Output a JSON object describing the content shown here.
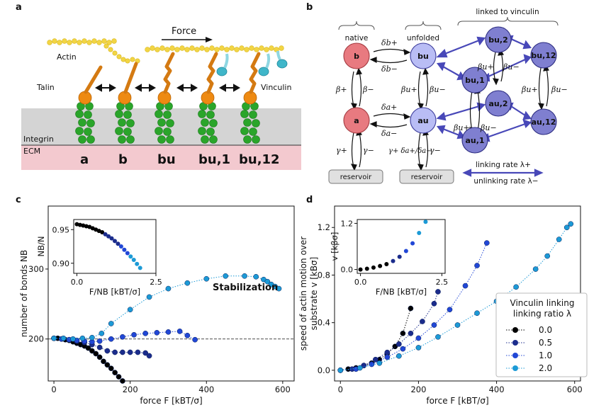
{
  "panels": [
    "a",
    "b",
    "c",
    "d"
  ],
  "panel_a": {
    "force_label": "Force",
    "labels": {
      "actin": "Actin",
      "talin": "Talin",
      "vinculin": "Vinculin",
      "integrin": "Integrin",
      "ecm": "ECM"
    },
    "states": [
      "a",
      "b",
      "bu",
      "bu,1",
      "bu,12"
    ]
  },
  "panel_b": {
    "groups": {
      "native": "native",
      "unfolded": "unfolded",
      "linked": "linked to vinculin"
    },
    "nodes": {
      "b": "b",
      "bu": "bu",
      "bu2": "bu,2",
      "bu12": "bu,12",
      "bu1": "bu,1",
      "a": "a",
      "au": "au",
      "au2": "au,2",
      "au12": "au,12",
      "au1": "au,1"
    },
    "rates": {
      "db_plus": "δb+",
      "db_minus": "δb−",
      "da_plus": "δa+",
      "da_minus": "δa−",
      "beta_plus": "β+",
      "beta_minus": "β−",
      "betau_plus": "βu+",
      "betau_minus": "βu−",
      "gamma_plus": "γ+",
      "gamma_minus": "γ−",
      "gamma_ratio": "γ+ δa+/δa−"
    },
    "reservoir": "reservoir",
    "legend": {
      "linking": "linking rate λ+",
      "unlinking": "unlinking rate λ−"
    },
    "colors": {
      "native": "#e87a80",
      "unfolded": "#b9bdf5",
      "linked": "#7f7fd0",
      "arrow": "#4848b8"
    }
  },
  "chart_data": [
    {
      "type": "scatter",
      "panel": "c",
      "xlabel": "force F [kBT/σ]",
      "ylabel": "number of bonds NB",
      "xlim": [
        -15,
        630
      ],
      "ylim": [
        140,
        390
      ],
      "xticks": [
        0,
        200,
        400,
        600
      ],
      "yticks": [
        200,
        300
      ],
      "reference_line": 200,
      "annotation": "Stabilization",
      "series": [
        {
          "lambda": "0.0",
          "color": "#000000",
          "x": [
            0,
            10,
            20,
            30,
            40,
            50,
            60,
            70,
            80,
            90,
            100,
            110,
            120,
            130,
            140,
            150,
            160,
            170,
            180
          ],
          "y": [
            201,
            201,
            200,
            199,
            198,
            196,
            194,
            192,
            190,
            187,
            183,
            179,
            174,
            168,
            163,
            158,
            152,
            146,
            140
          ]
        },
        {
          "lambda": "0.5",
          "color": "#1b2c8c",
          "x": [
            0,
            20,
            40,
            60,
            80,
            100,
            120,
            140,
            160,
            180,
            200,
            220,
            240,
            250
          ],
          "y": [
            201,
            200,
            199,
            197,
            195,
            192,
            188,
            183,
            181,
            181,
            181,
            181,
            180,
            176
          ]
        },
        {
          "lambda": "1.0",
          "color": "#2147d6",
          "x": [
            0,
            20,
            40,
            60,
            80,
            100,
            120,
            150,
            180,
            210,
            240,
            270,
            300,
            330,
            350,
            370
          ],
          "y": [
            201,
            200,
            199,
            198,
            197,
            196,
            197,
            200,
            203,
            206,
            208,
            209,
            210,
            211,
            205,
            199
          ]
        },
        {
          "lambda": "2.0",
          "color": "#1c9ad6",
          "x": [
            0,
            25,
            50,
            75,
            100,
            125,
            150,
            200,
            250,
            300,
            350,
            400,
            450,
            500,
            530,
            550,
            560,
            570,
            580,
            590
          ],
          "y": [
            201,
            201,
            200,
            201,
            202,
            208,
            222,
            242,
            260,
            272,
            280,
            286,
            290,
            290,
            289,
            285,
            282,
            278,
            275,
            272
          ]
        }
      ],
      "inset": {
        "xlabel": "F/NB [kBT/σ]",
        "ylabel": "NB/N",
        "xlim": [
          -0.1,
          2.5
        ],
        "ylim": [
          0.885,
          0.965
        ],
        "xticks": [
          0.0,
          2.5
        ],
        "yticks": [
          0.9,
          0.95
        ],
        "x": [
          0.0,
          0.1,
          0.2,
          0.3,
          0.4,
          0.5,
          0.6,
          0.7,
          0.8,
          0.9,
          1.0,
          1.1,
          1.2,
          1.3,
          1.4,
          1.5,
          1.6,
          1.7,
          1.8,
          1.9,
          2.0
        ],
        "y": [
          0.958,
          0.957,
          0.956,
          0.955,
          0.954,
          0.952,
          0.95,
          0.948,
          0.946,
          0.943,
          0.94,
          0.937,
          0.933,
          0.929,
          0.925,
          0.92,
          0.915,
          0.91,
          0.905,
          0.899,
          0.893
        ]
      }
    },
    {
      "type": "scatter",
      "panel": "d",
      "xlabel": "force F [kBT/σ]",
      "ylabel": "speed of actin motion over substrate v [kBσ]",
      "xlim": [
        -15,
        615
      ],
      "ylim": [
        -0.09,
        1.38
      ],
      "xticks": [
        0,
        200,
        400,
        600
      ],
      "yticks": [
        0.0,
        0.4,
        0.8,
        1.2
      ],
      "legend_title": "Vinculin linking ratio λ",
      "series": [
        {
          "name": "0.0",
          "color": "#000000",
          "x": [
            0,
            20,
            40,
            60,
            80,
            100,
            120,
            140,
            160,
            180
          ],
          "y": [
            0,
            0.01,
            0.02,
            0.04,
            0.06,
            0.09,
            0.14,
            0.2,
            0.31,
            0.52
          ]
        },
        {
          "name": "0.5",
          "color": "#1b2c8c",
          "x": [
            0,
            30,
            60,
            90,
            120,
            150,
            180,
            210,
            240,
            250
          ],
          "y": [
            0,
            0.01,
            0.04,
            0.09,
            0.15,
            0.22,
            0.31,
            0.41,
            0.56,
            0.66
          ]
        },
        {
          "name": "1.0",
          "color": "#2147d6",
          "x": [
            0,
            40,
            80,
            120,
            160,
            200,
            240,
            280,
            320,
            350,
            375
          ],
          "y": [
            0,
            0.01,
            0.05,
            0.11,
            0.18,
            0.27,
            0.38,
            0.51,
            0.71,
            0.88,
            1.07
          ]
        },
        {
          "name": "2.0",
          "color": "#1c9ad6",
          "x": [
            0,
            50,
            100,
            150,
            200,
            250,
            300,
            350,
            400,
            450,
            500,
            530,
            560,
            580,
            590
          ],
          "y": [
            0,
            0.02,
            0.06,
            0.12,
            0.19,
            0.28,
            0.38,
            0.48,
            0.58,
            0.7,
            0.85,
            0.96,
            1.1,
            1.2,
            1.23
          ]
        }
      ],
      "inset": {
        "xlabel": "F/NB [kBT/σ]",
        "ylabel": "v [kβσ]",
        "xlim": [
          -0.1,
          2.6
        ],
        "ylim": [
          -0.1,
          1.3
        ],
        "xticks": [
          0.0,
          2.5
        ],
        "yticks": [
          0.0,
          1.2
        ],
        "x": [
          0.0,
          0.2,
          0.4,
          0.6,
          0.8,
          1.0,
          1.2,
          1.4,
          1.6,
          1.8,
          2.0
        ],
        "y": [
          0.0,
          0.02,
          0.05,
          0.09,
          0.14,
          0.22,
          0.33,
          0.48,
          0.68,
          0.95,
          1.24
        ]
      }
    }
  ]
}
